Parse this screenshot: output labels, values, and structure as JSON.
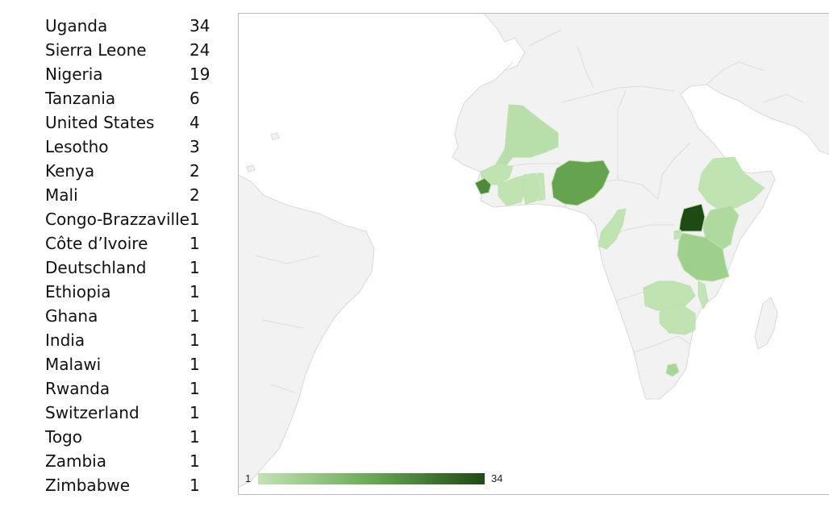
{
  "countries": [
    {
      "name": "Uganda",
      "value": "34"
    },
    {
      "name": "Sierra Leone",
      "value": "24"
    },
    {
      "name": "Nigeria",
      "value": "19"
    },
    {
      "name": "Tanzania",
      "value": "6"
    },
    {
      "name": "United States",
      "value": "4"
    },
    {
      "name": "Lesotho",
      "value": "3"
    },
    {
      "name": "Kenya",
      "value": "2"
    },
    {
      "name": "Mali",
      "value": "2"
    },
    {
      "name": "Congo-Brazzaville",
      "value": "1"
    },
    {
      "name": "Côte d’Ivoire",
      "value": "1"
    },
    {
      "name": "Deutschland",
      "value": "1"
    },
    {
      "name": "Ethiopia",
      "value": "1"
    },
    {
      "name": "Ghana",
      "value": "1"
    },
    {
      "name": "India",
      "value": "1"
    },
    {
      "name": "Malawi",
      "value": "1"
    },
    {
      "name": "Rwanda",
      "value": "1"
    },
    {
      "name": "Switzerland",
      "value": "1"
    },
    {
      "name": "Togo",
      "value": "1"
    },
    {
      "name": "Zambia",
      "value": "1"
    },
    {
      "name": "Zimbabwe",
      "value": "1"
    }
  ],
  "legend": {
    "min_label": "1",
    "max_label": "34",
    "min_color": "#c3e3b5",
    "max_color": "#1e4a14"
  },
  "colors": {
    "land": "#f2f2f2",
    "land_border": "#d9d9d9",
    "map_border": "#b9b9b9"
  }
}
